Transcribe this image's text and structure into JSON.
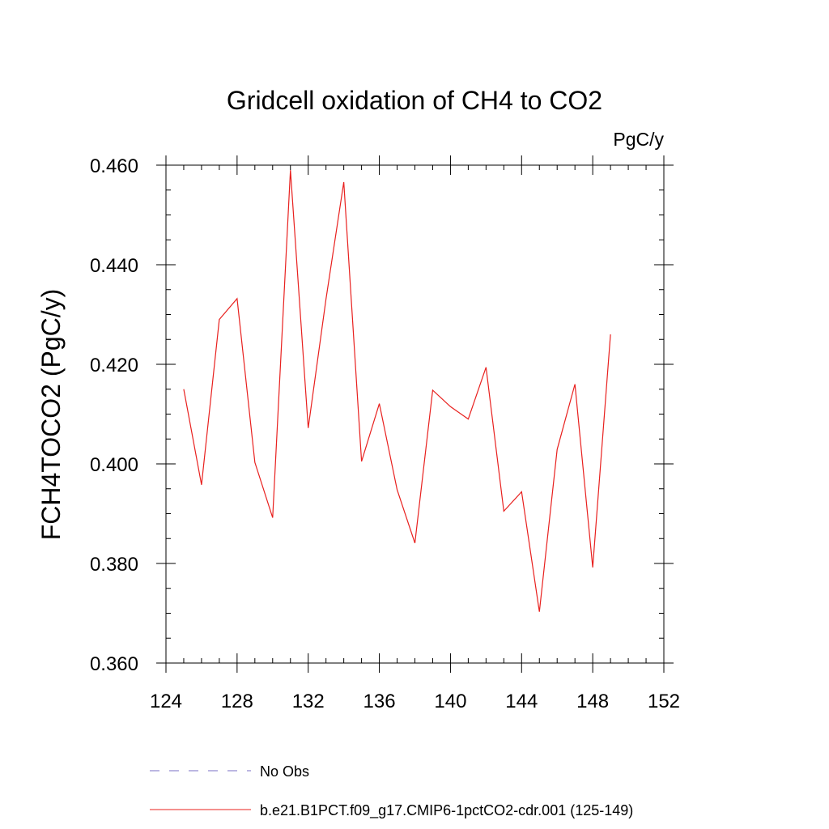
{
  "chart_data": {
    "type": "line",
    "title": "Gridcell oxidation of CH4 to CO2",
    "units_label": "PgC/y",
    "xlabel": "",
    "ylabel": "FCH4TOCO2  (PgC/y)",
    "xlim": [
      124,
      152
    ],
    "ylim": [
      0.36,
      0.46
    ],
    "x_ticks": [
      124,
      128,
      132,
      136,
      140,
      144,
      148,
      152
    ],
    "x_tick_labels": [
      "124",
      "128",
      "132",
      "136",
      "140",
      "144",
      "148",
      "152"
    ],
    "x_minor_step": 1,
    "y_ticks": [
      0.36,
      0.38,
      0.4,
      0.42,
      0.44,
      0.46
    ],
    "y_tick_labels": [
      "0.360",
      "0.380",
      "0.400",
      "0.420",
      "0.440",
      "0.460"
    ],
    "y_minor_step": 0.005,
    "grid": false,
    "series": [
      {
        "name": "b.e21.B1PCT.f09_g17.CMIP6-1pctCO2-cdr.001 (125-149)",
        "color": "#e8201e",
        "x": [
          125,
          126,
          127,
          128,
          129,
          130,
          131,
          132,
          133,
          134,
          135,
          136,
          137,
          138,
          139,
          140,
          141,
          142,
          143,
          144,
          145,
          146,
          147,
          148,
          149
        ],
        "y": [
          0.415,
          0.3958,
          0.429,
          0.4332,
          0.4003,
          0.3892,
          0.459,
          0.4072,
          0.4331,
          0.4566,
          0.4005,
          0.4121,
          0.3948,
          0.3841,
          0.4148,
          0.4115,
          0.409,
          0.4194,
          0.3905,
          0.3944,
          0.3703,
          0.4029,
          0.416,
          0.3792,
          0.426
        ]
      }
    ],
    "legend": [
      {
        "label": "No Obs",
        "style": "dashed",
        "color": "#7a6fc6"
      },
      {
        "label": "b.e21.B1PCT.f09_g17.CMIP6-1pctCO2-cdr.001 (125-149)",
        "style": "solid",
        "color": "#e8201e"
      }
    ]
  }
}
